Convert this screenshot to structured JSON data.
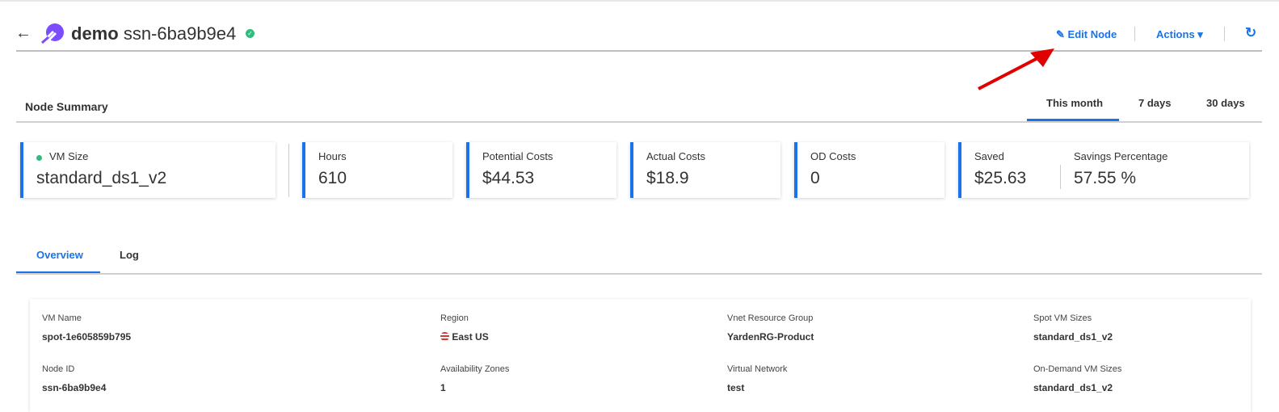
{
  "header": {
    "app": "demo",
    "node": "ssn-6ba9b9e4",
    "status": "healthy",
    "edit_label": "Edit Node",
    "actions_label": "Actions"
  },
  "summary": {
    "title": "Node Summary",
    "ranges": [
      "This month",
      "7 days",
      "30 days"
    ],
    "active_range": "This month"
  },
  "cards": {
    "vm_size": {
      "label": "VM Size",
      "value": "standard_ds1_v2"
    },
    "hours": {
      "label": "Hours",
      "value": "610"
    },
    "potential": {
      "label": "Potential Costs",
      "value": "$44.53"
    },
    "actual": {
      "label": "Actual Costs",
      "value": "$18.9"
    },
    "od": {
      "label": "OD Costs",
      "value": "0"
    },
    "saved": {
      "label": "Saved",
      "value": "$25.63"
    },
    "savings_pct": {
      "label": "Savings Percentage",
      "value": "57.55 %"
    }
  },
  "tabs": [
    "Overview",
    "Log"
  ],
  "details": {
    "vm_name": {
      "label": "VM Name",
      "value": "spot-1e605859b795"
    },
    "region": {
      "label": "Region",
      "value": "East US"
    },
    "vnet_rg": {
      "label": "Vnet Resource Group",
      "value": "YardenRG-Product"
    },
    "spot_sizes": {
      "label": "Spot VM Sizes",
      "value": "standard_ds1_v2"
    },
    "node_id": {
      "label": "Node ID",
      "value": "ssn-6ba9b9e4"
    },
    "az": {
      "label": "Availability Zones",
      "value": "1"
    },
    "vnet": {
      "label": "Virtual Network",
      "value": "test"
    },
    "od_sizes": {
      "label": "On-Demand VM Sizes",
      "value": "standard_ds1_v2"
    }
  },
  "colors": {
    "accent": "#1a73e8",
    "success": "#2ebd7e",
    "logo": "#7b4dff",
    "annotation_arrow": "#e00000"
  }
}
